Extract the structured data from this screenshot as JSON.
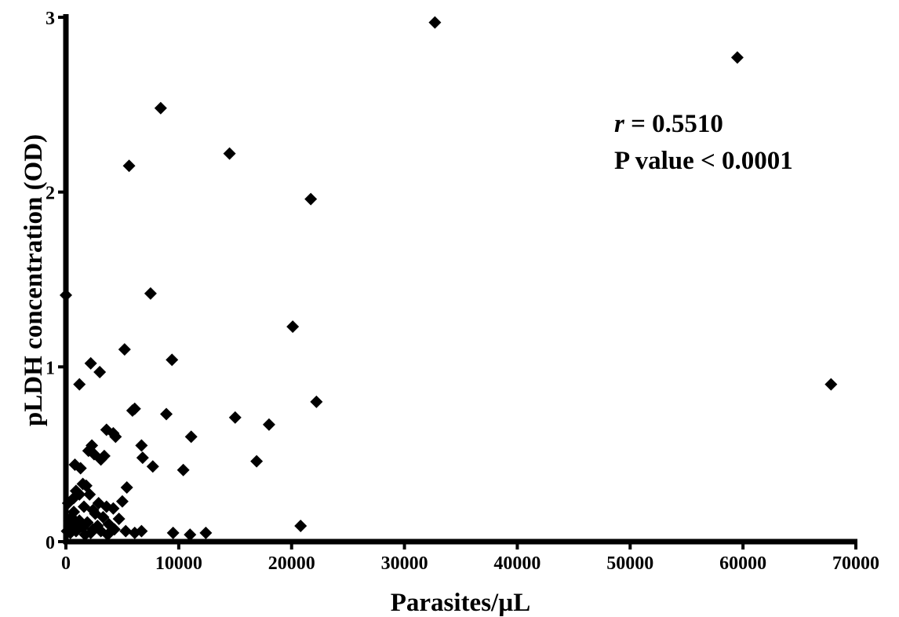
{
  "chart_data": {
    "type": "scatter",
    "xlabel": "Parasites/µL",
    "ylabel": "pLDH concentration (OD)",
    "xlim": [
      0,
      70000
    ],
    "ylim": [
      0,
      3
    ],
    "x_ticks": [
      0,
      10000,
      20000,
      30000,
      40000,
      50000,
      60000,
      70000
    ],
    "y_ticks": [
      0,
      1,
      2,
      3
    ],
    "grid": false,
    "marker": "diamond",
    "marker_color": "#000000",
    "annotation": {
      "r_symbol": "r",
      "r_value": " = 0.5510",
      "p_text": "P value < 0.0001"
    },
    "points": [
      [
        32700,
        2.97
      ],
      [
        59500,
        2.77
      ],
      [
        8400,
        2.48
      ],
      [
        14500,
        2.22
      ],
      [
        5600,
        2.15
      ],
      [
        21700,
        1.96
      ],
      [
        0,
        1.41
      ],
      [
        7500,
        1.42
      ],
      [
        20100,
        1.23
      ],
      [
        5200,
        1.1
      ],
      [
        9400,
        1.04
      ],
      [
        2200,
        1.02
      ],
      [
        3000,
        0.97
      ],
      [
        1200,
        0.9
      ],
      [
        67800,
        0.9
      ],
      [
        22200,
        0.8
      ],
      [
        6100,
        0.76
      ],
      [
        5900,
        0.75
      ],
      [
        8900,
        0.73
      ],
      [
        15000,
        0.71
      ],
      [
        18000,
        0.67
      ],
      [
        3600,
        0.64
      ],
      [
        4200,
        0.62
      ],
      [
        4400,
        0.6
      ],
      [
        11100,
        0.6
      ],
      [
        2300,
        0.55
      ],
      [
        2000,
        0.52
      ],
      [
        6700,
        0.55
      ],
      [
        2500,
        0.5
      ],
      [
        3400,
        0.49
      ],
      [
        3100,
        0.47
      ],
      [
        6800,
        0.48
      ],
      [
        16900,
        0.46
      ],
      [
        800,
        0.44
      ],
      [
        7700,
        0.43
      ],
      [
        1300,
        0.42
      ],
      [
        10400,
        0.41
      ],
      [
        1500,
        0.33
      ],
      [
        5400,
        0.31
      ],
      [
        1800,
        0.32
      ],
      [
        900,
        0.29
      ],
      [
        1200,
        0.27
      ],
      [
        2100,
        0.27
      ],
      [
        700,
        0.25
      ],
      [
        5000,
        0.23
      ],
      [
        2900,
        0.22
      ],
      [
        3600,
        0.2
      ],
      [
        200,
        0.22
      ],
      [
        1600,
        0.2
      ],
      [
        2400,
        0.18
      ],
      [
        4200,
        0.19
      ],
      [
        700,
        0.17
      ],
      [
        2600,
        0.16
      ],
      [
        500,
        0.14
      ],
      [
        3300,
        0.14
      ],
      [
        4700,
        0.13
      ],
      [
        1200,
        0.12
      ],
      [
        1900,
        0.11
      ],
      [
        3800,
        0.1
      ],
      [
        300,
        0.09
      ],
      [
        2800,
        0.09
      ],
      [
        600,
        0.08
      ],
      [
        1500,
        0.08
      ],
      [
        4300,
        0.07
      ],
      [
        20800,
        0.09
      ],
      [
        100,
        0.06
      ],
      [
        900,
        0.06
      ],
      [
        2200,
        0.05
      ],
      [
        3100,
        0.06
      ],
      [
        5300,
        0.06
      ],
      [
        6100,
        0.05
      ],
      [
        6700,
        0.06
      ],
      [
        9500,
        0.05
      ],
      [
        11000,
        0.04
      ],
      [
        12400,
        0.05
      ],
      [
        1700,
        0.04
      ],
      [
        3700,
        0.04
      ],
      [
        2400,
        0.07
      ],
      [
        400,
        0.05
      ],
      [
        1000,
        0.1
      ],
      [
        300,
        0.12
      ]
    ]
  }
}
